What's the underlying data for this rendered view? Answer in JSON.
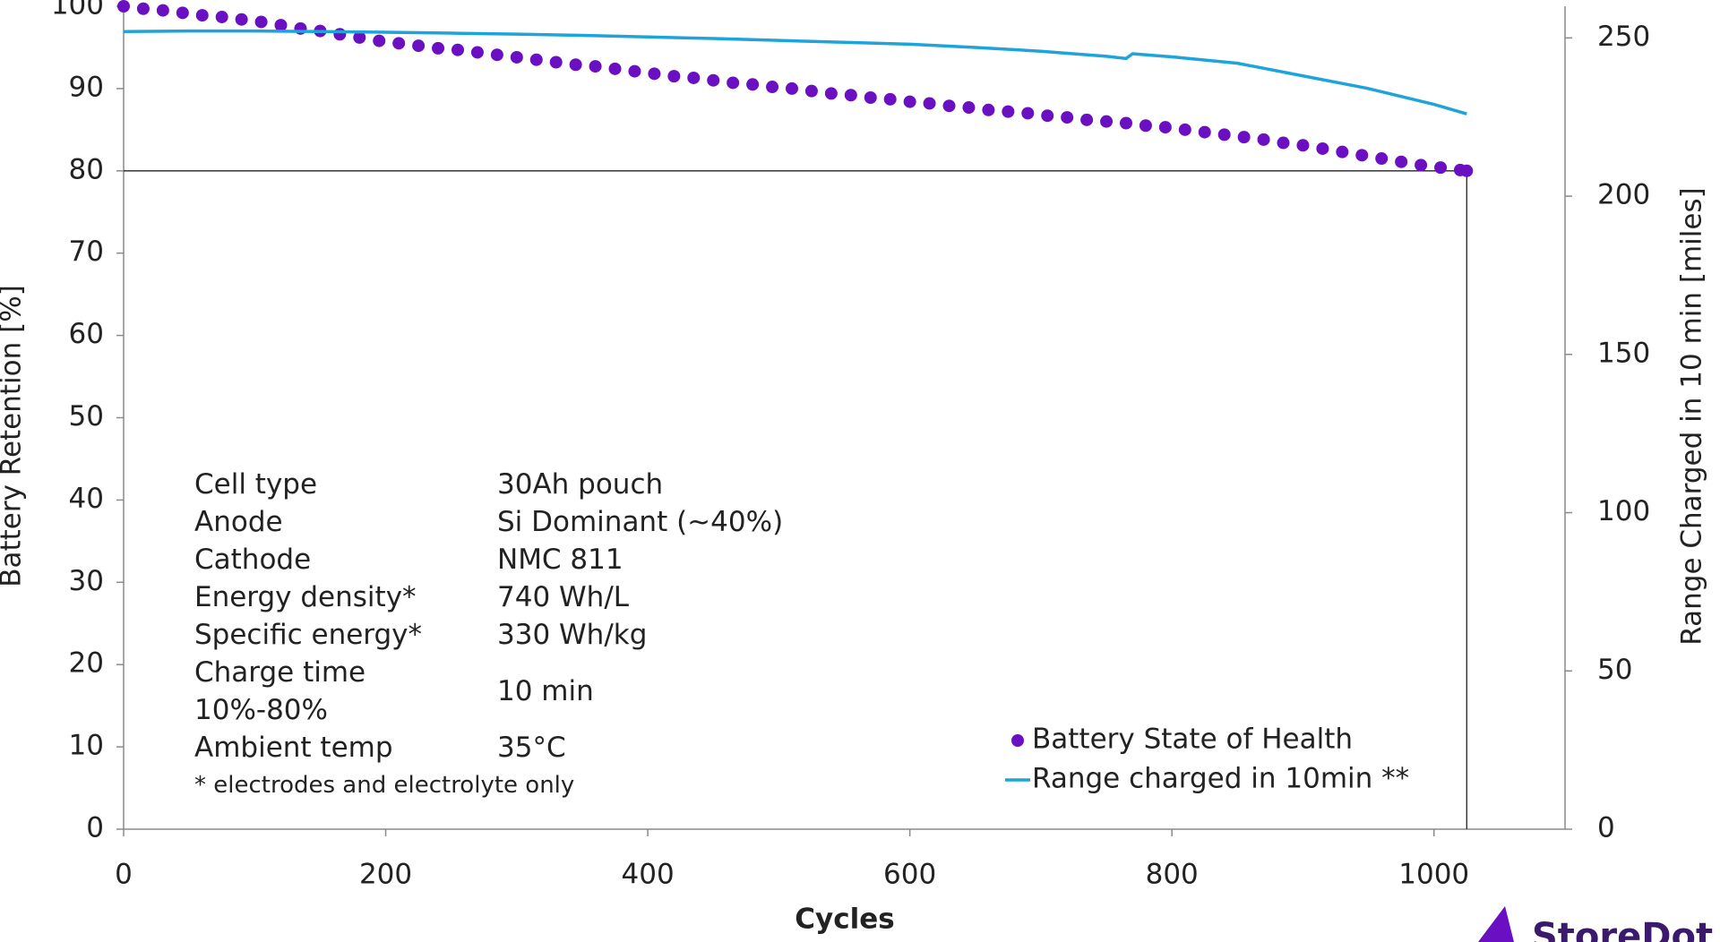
{
  "chart_data": {
    "type": "combo",
    "xlabel": "Cycles",
    "ylabel": "Battery Retention [%]",
    "y2label": "Range Charged in 10 min  [miles]",
    "xlim": [
      0,
      1100
    ],
    "xticks": [
      0,
      200,
      400,
      600,
      800,
      1000
    ],
    "ylim": [
      0,
      100
    ],
    "yticks": [
      0,
      10,
      20,
      30,
      40,
      50,
      60,
      70,
      80,
      90,
      100
    ],
    "y2lim": [
      0,
      260
    ],
    "y2ticks": [
      0,
      50,
      100,
      150,
      200,
      250
    ],
    "threshold": {
      "x": 1025,
      "y": 80
    },
    "series": [
      {
        "name": "Battery State of Health",
        "type": "scatter",
        "color": "#6a0fc2",
        "x": [
          0,
          15,
          30,
          45,
          60,
          75,
          90,
          105,
          120,
          135,
          150,
          165,
          180,
          195,
          210,
          225,
          240,
          255,
          270,
          285,
          300,
          315,
          330,
          345,
          360,
          375,
          390,
          405,
          420,
          435,
          450,
          465,
          480,
          495,
          510,
          525,
          540,
          555,
          570,
          585,
          600,
          615,
          630,
          645,
          660,
          675,
          690,
          705,
          720,
          735,
          750,
          765,
          780,
          795,
          810,
          825,
          840,
          855,
          870,
          885,
          900,
          915,
          930,
          945,
          960,
          975,
          990,
          1005,
          1020,
          1025
        ],
        "values": [
          100,
          99.7,
          99.5,
          99.2,
          98.9,
          98.7,
          98.4,
          98.1,
          97.7,
          97.3,
          97.0,
          96.6,
          96.2,
          95.8,
          95.5,
          95.2,
          94.9,
          94.7,
          94.4,
          94.1,
          93.8,
          93.5,
          93.2,
          92.9,
          92.7,
          92.4,
          92.1,
          91.8,
          91.5,
          91.3,
          91.0,
          90.7,
          90.5,
          90.2,
          90.0,
          89.7,
          89.4,
          89.2,
          88.9,
          88.7,
          88.4,
          88.2,
          87.9,
          87.7,
          87.4,
          87.2,
          87.0,
          86.7,
          86.5,
          86.2,
          86.0,
          85.8,
          85.5,
          85.3,
          85.0,
          84.7,
          84.4,
          84.1,
          83.8,
          83.4,
          83.1,
          82.7,
          82.3,
          81.9,
          81.5,
          81.1,
          80.7,
          80.4,
          80.1,
          80.0
        ]
      },
      {
        "name": "Range charged in 10min **",
        "type": "line",
        "axis": "y2",
        "color": "#1fa3db",
        "x": [
          0,
          50,
          100,
          150,
          200,
          250,
          300,
          350,
          400,
          450,
          500,
          550,
          600,
          650,
          700,
          750,
          765,
          770,
          800,
          850,
          900,
          950,
          1000,
          1025
        ],
        "values": [
          252,
          252.2,
          252.2,
          252,
          251.8,
          251.5,
          251.2,
          250.8,
          250.3,
          249.8,
          249.2,
          248.6,
          248,
          247,
          245.8,
          244.2,
          243.5,
          245,
          244,
          242,
          238,
          234,
          229,
          226
        ]
      }
    ]
  },
  "info_table": {
    "rows": [
      [
        "Cell type",
        "30Ah pouch"
      ],
      [
        "Anode",
        "Si Dominant (~40%)"
      ],
      [
        "Cathode",
        "NMC 811"
      ],
      [
        "Energy density*",
        "740 Wh/L"
      ],
      [
        "Specific energy*",
        "330 Wh/kg"
      ],
      [
        "Charge time 10%-80%",
        "10 min"
      ],
      [
        "Ambient temp",
        "35°C"
      ]
    ],
    "footnote": "* electrodes and electrolyte only"
  },
  "logo": "StoreDot"
}
